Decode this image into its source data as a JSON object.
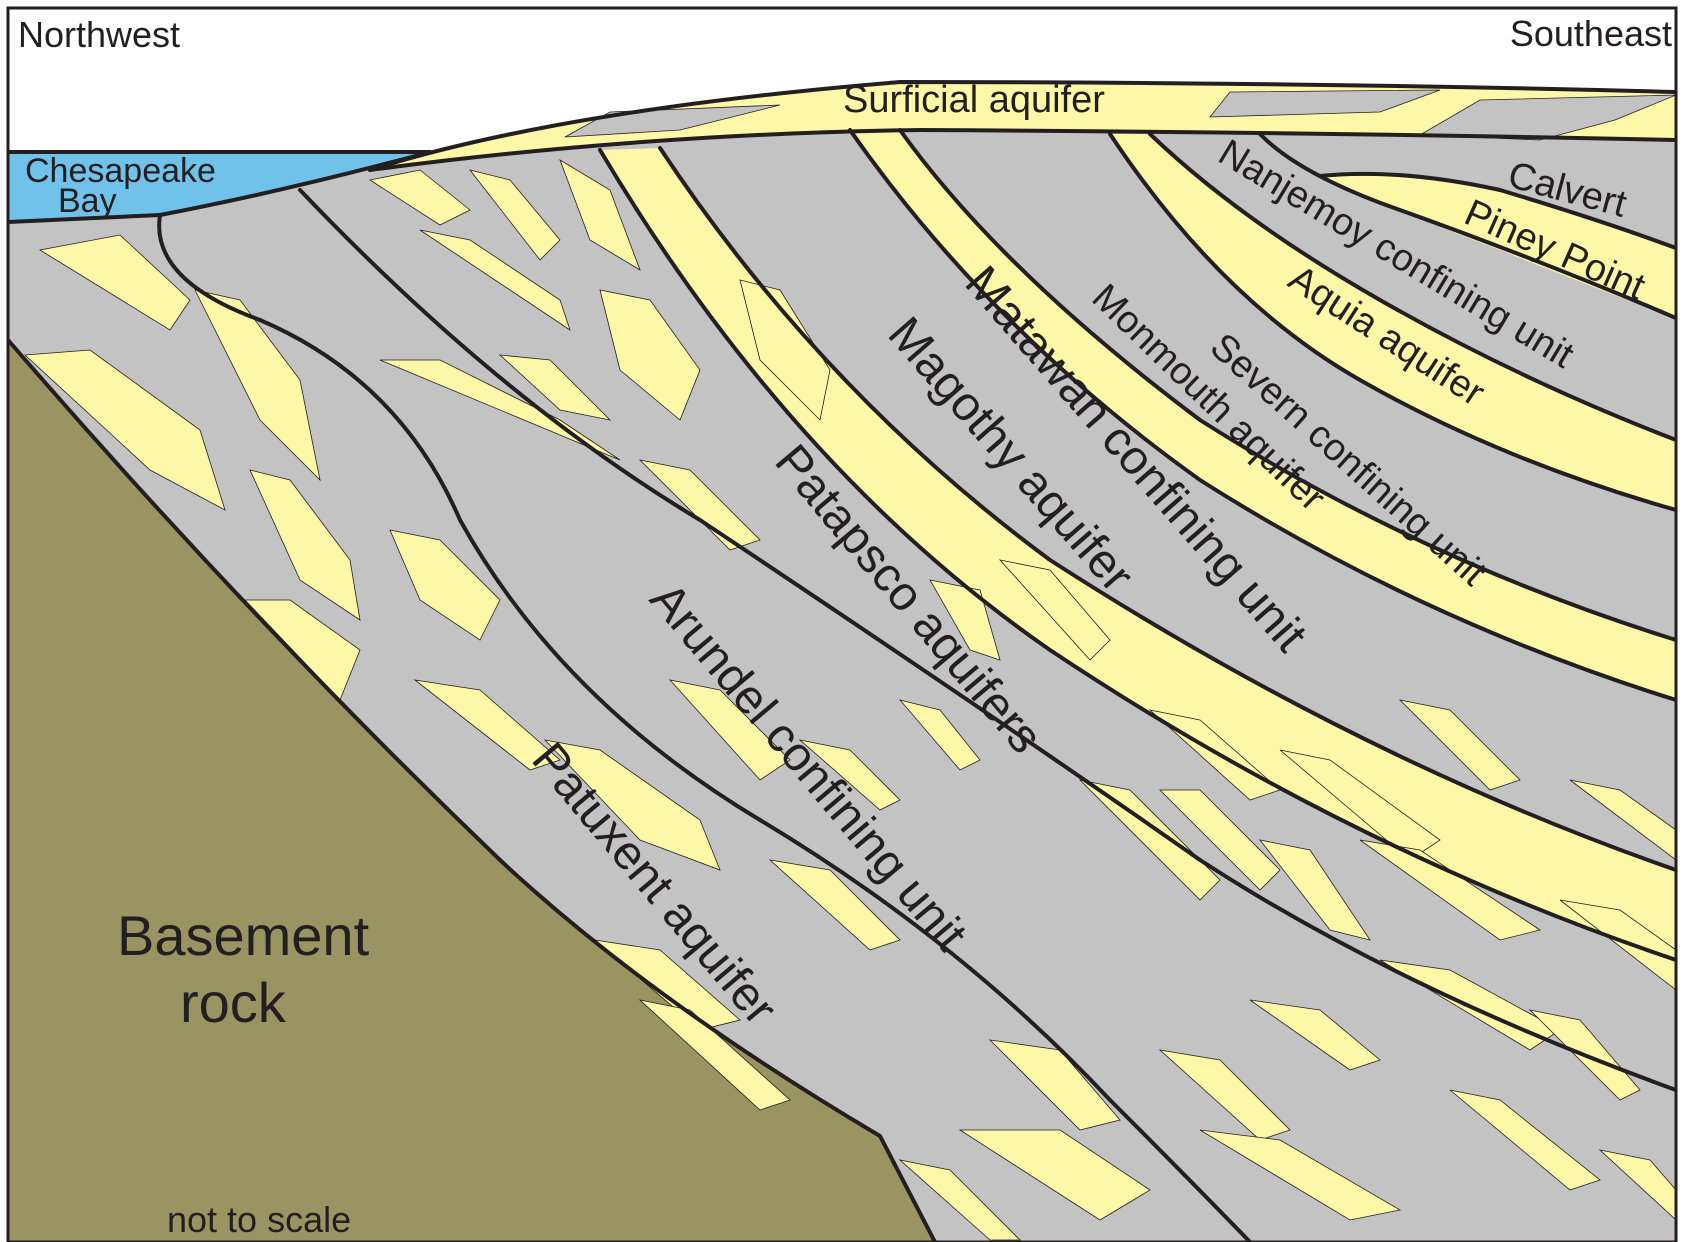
{
  "colors": {
    "aquifer": "#fdf8a8",
    "confining": "#c3c3c3",
    "basement": "#9a9463",
    "bay": "#71c2ea",
    "sky": "#ffffff",
    "line": "#231f20"
  },
  "labels": {
    "northwest": "Northwest",
    "southeast": "Southeast",
    "bay_line1": "Chesapeake",
    "bay_line2": "Bay",
    "surficial": "Surficial aquifer",
    "calvert": "Calvert",
    "piney_point": "Piney Point",
    "nanjemoy": "Nanjemoy confining unit",
    "aquia": "Aquia aquifer",
    "severn": "Severn confining unit",
    "monmouth": "Monmouth aquifer",
    "matawan": "Matawan confining unit",
    "magothy": "Magothy aquifer",
    "patapsco": "Patapsco aquifers",
    "arundel": "Arundel confining unit",
    "patuxent": "Patuxent aquifer",
    "basement_line1": "Basement",
    "basement_line2": "rock",
    "scale_note": "not to scale"
  }
}
